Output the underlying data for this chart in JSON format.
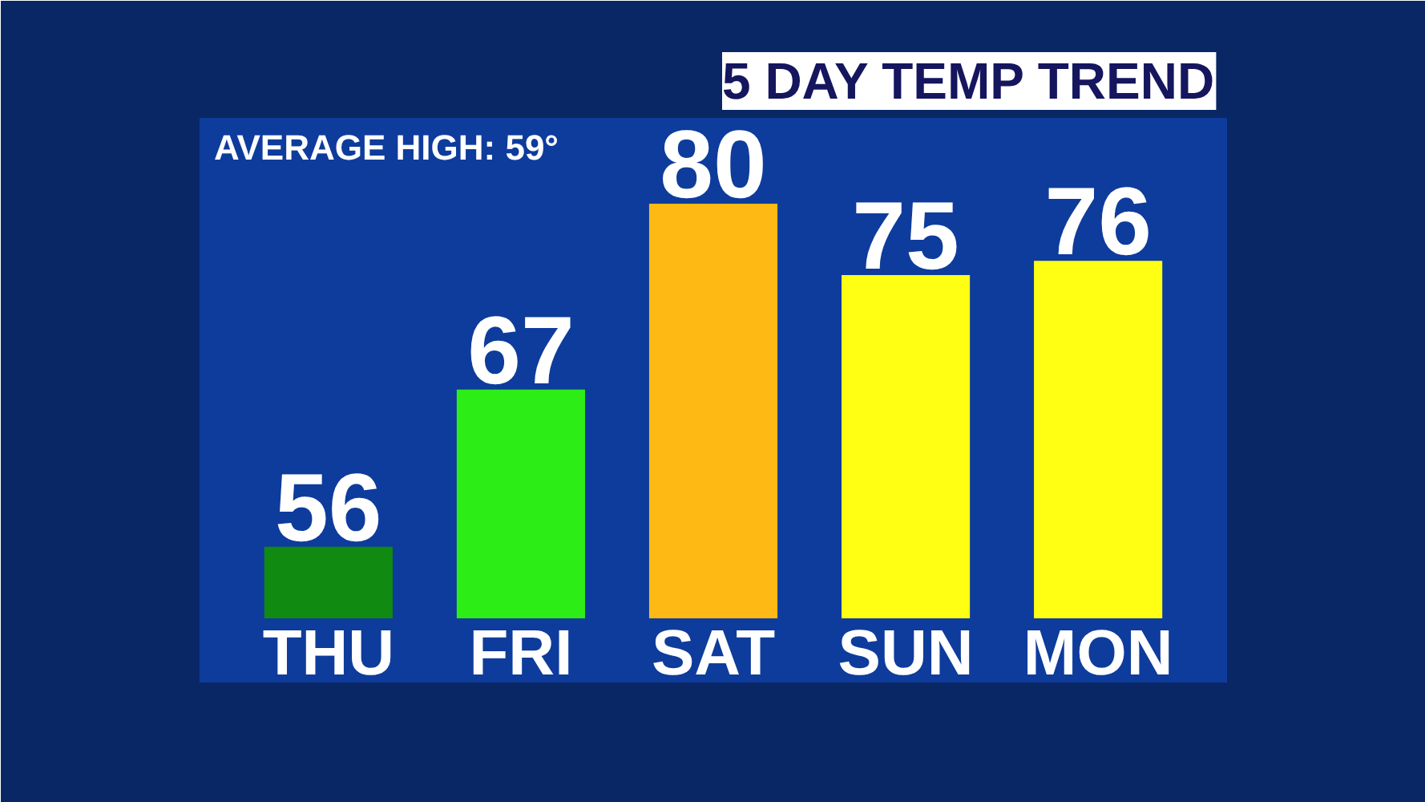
{
  "chart_data": {
    "type": "bar",
    "title": "5 DAY TEMP TREND",
    "categories": [
      "THU",
      "FRI",
      "SAT",
      "SUN",
      "MON"
    ],
    "values": [
      56,
      67,
      80,
      75,
      76
    ],
    "colors": [
      "#108a10",
      "#2ded16",
      "#ffb914",
      "#ffff14",
      "#ffff14"
    ],
    "data_labels": true,
    "annotations": [
      "AVERAGE HIGH: 59°"
    ],
    "ylim": [
      51,
      86
    ]
  }
}
